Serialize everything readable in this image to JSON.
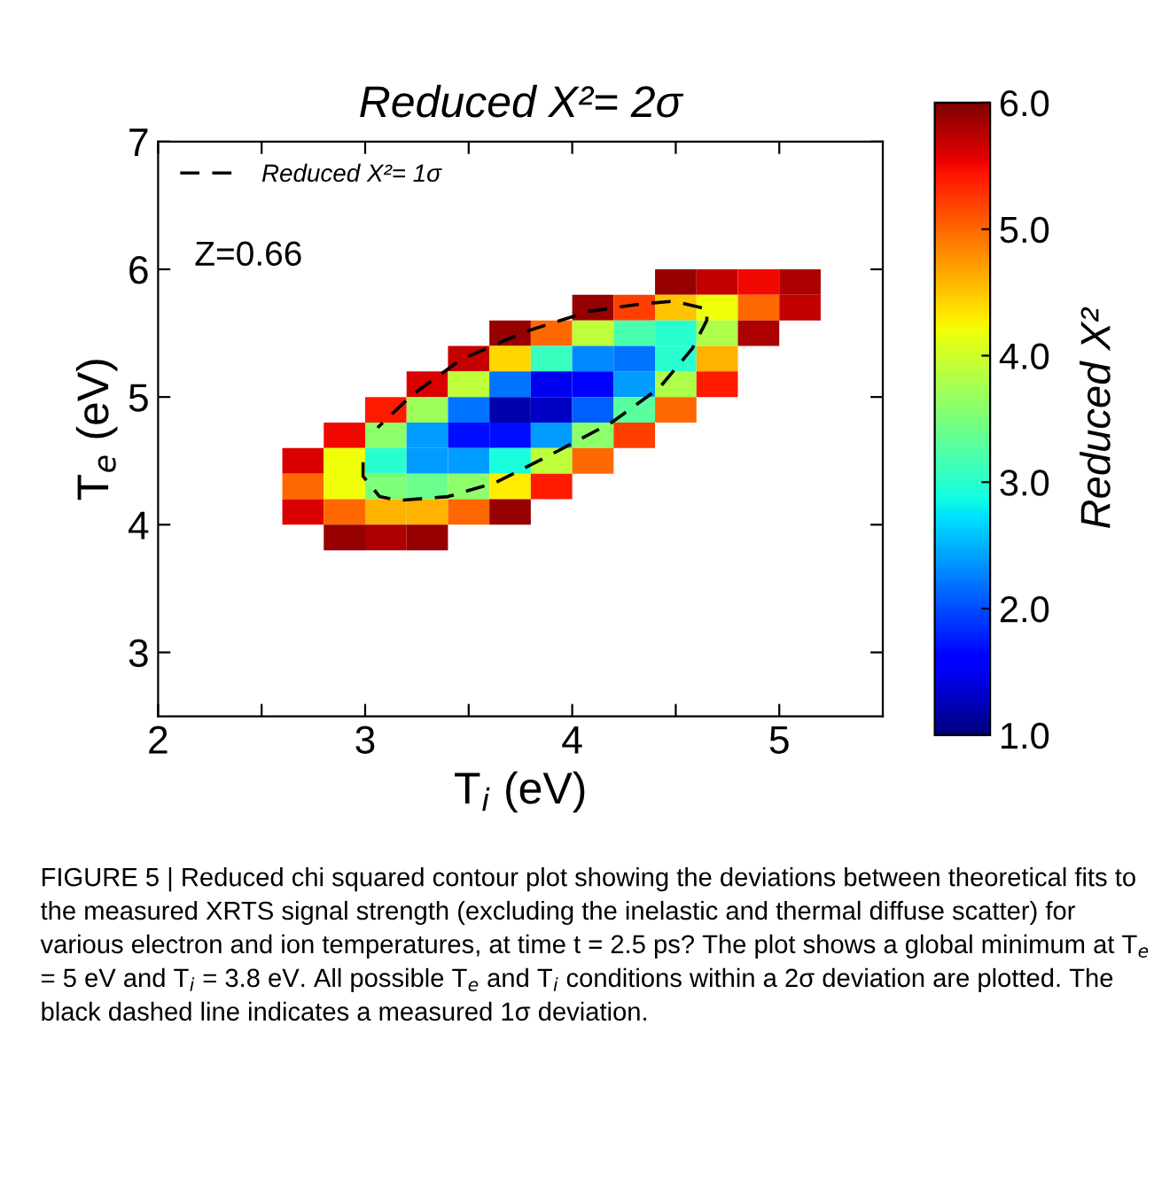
{
  "chart_data": {
    "type": "heatmap",
    "title": "Reduced X²= 2σ",
    "xlabel": "T$_{i}$ (eV)",
    "ylabel": "T$_{e}$ (eV)",
    "clabel": "Reduced X²",
    "x": [
      2.7,
      2.9,
      3.1,
      3.3,
      3.5,
      3.7,
      3.9,
      4.1,
      4.3,
      4.5,
      4.7,
      4.9,
      5.1
    ],
    "y": [
      5.9,
      5.7,
      5.5,
      5.3,
      5.1,
      4.9,
      4.7,
      4.5,
      4.3,
      4.1,
      3.9
    ],
    "cells": [
      [
        null,
        null,
        null,
        null,
        null,
        null,
        null,
        null,
        null,
        5.9,
        5.7,
        5.5,
        5.8
      ],
      [
        null,
        null,
        null,
        null,
        null,
        null,
        null,
        5.9,
        5.2,
        4.5,
        4.2,
        5.0,
        5.7
      ],
      [
        null,
        null,
        null,
        null,
        null,
        5.9,
        5.0,
        3.9,
        3.2,
        3.0,
        3.8,
        5.8,
        null
      ],
      [
        null,
        null,
        null,
        null,
        5.7,
        4.4,
        3.1,
        2.3,
        2.2,
        3.0,
        4.6,
        null,
        null
      ],
      [
        null,
        null,
        null,
        5.6,
        3.9,
        2.2,
        1.5,
        1.6,
        2.4,
        3.8,
        5.4,
        null,
        null
      ],
      [
        null,
        null,
        5.4,
        3.7,
        2.2,
        1.2,
        1.3,
        2.1,
        3.3,
        5.0,
        null,
        null,
        null
      ],
      [
        null,
        5.5,
        3.6,
        2.4,
        1.7,
        1.7,
        2.4,
        3.6,
        5.2,
        null,
        null,
        null,
        null
      ],
      [
        5.6,
        4.2,
        3.0,
        2.4,
        2.4,
        2.9,
        3.9,
        5.0,
        null,
        null,
        null,
        null,
        null
      ],
      [
        5.0,
        4.2,
        3.5,
        3.4,
        3.6,
        4.3,
        5.4,
        null,
        null,
        null,
        null,
        null,
        null
      ],
      [
        5.6,
        5.0,
        4.6,
        4.6,
        5.0,
        5.9,
        null,
        null,
        null,
        null,
        null,
        null,
        null
      ],
      [
        null,
        5.9,
        5.8,
        5.9,
        null,
        null,
        null,
        null,
        null,
        null,
        null,
        null,
        null
      ]
    ],
    "clim": [
      1,
      6
    ],
    "cticks": [
      {
        "value": 1,
        "label": "1.0"
      },
      {
        "value": 2,
        "label": "2.0"
      },
      {
        "value": 3,
        "label": "3.0"
      },
      {
        "value": 4,
        "label": "4.0"
      },
      {
        "value": 5,
        "label": "5.0"
      },
      {
        "value": 6,
        "label": "6.0"
      }
    ],
    "series": [
      {
        "type": "line",
        "name": "Reduced X²= 1σ",
        "color": "#000000",
        "line_style": "dashed",
        "x": [
          2.99,
          2.99,
          3.07,
          3.16,
          3.4,
          3.63,
          3.91,
          4.19,
          4.42,
          4.58,
          4.65,
          4.65,
          4.49,
          4.34,
          4.08,
          3.77,
          3.46,
          3.23,
          3.06
        ],
        "values": [
          4.49,
          4.38,
          4.22,
          4.19,
          4.22,
          4.33,
          4.56,
          4.8,
          5.07,
          5.38,
          5.6,
          5.69,
          5.75,
          5.73,
          5.67,
          5.51,
          5.29,
          5.02,
          4.76
        ]
      }
    ],
    "xlim": [
      2,
      5.5
    ],
    "xticks": [
      2,
      {
        "value": 2.5,
        "label": null
      },
      3,
      {
        "value": 3.5,
        "label": null
      },
      4,
      {
        "value": 4.5,
        "label": null
      },
      5
    ],
    "ylim": [
      2.5,
      7
    ],
    "yticks": [
      3,
      4,
      5,
      6,
      7
    ],
    "legend": "top left",
    "grid": false,
    "annotations": [
      "Z=0.66",
      "FIGURE 5 | Reduced chi squared contour plot showing the deviations between theoretical fits to the measured XRTS signal strength (excluding the inelastic and thermal diffuse scatter) for various electron and ion temperatures, at time t = 2.5 ps? The plot shows a global minimum at T$_{e}$ = 5 eV and T$_{i}$ = 3.8 eV. All possible T$_{e}$ and T$_{i}$ conditions within a 2σ deviation are plotted. The black dashed line indicates a measured 1σ deviation."
    ]
  }
}
